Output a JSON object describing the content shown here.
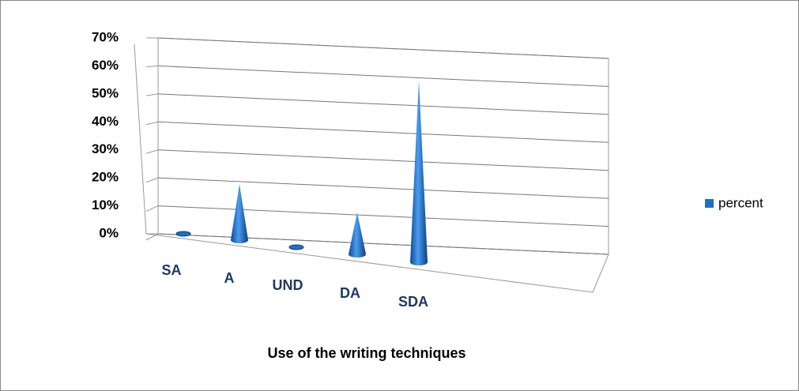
{
  "chart_data": {
    "type": "cone3d",
    "title": "Use of the writing techniques",
    "categories": [
      "SA",
      "A",
      "UND",
      "DA",
      "SDA"
    ],
    "series": [
      {
        "name": "percent",
        "color": "#1f6fc5",
        "values": [
          0,
          20,
          0,
          15,
          65
        ]
      }
    ],
    "ylim": [
      0,
      70
    ],
    "yticks": [
      {
        "value": 0,
        "label": "0%"
      },
      {
        "value": 10,
        "label": "10%"
      },
      {
        "value": 20,
        "label": "20%"
      },
      {
        "value": 30,
        "label": "30%"
      },
      {
        "value": 40,
        "label": "40%"
      },
      {
        "value": 50,
        "label": "50%"
      },
      {
        "value": 60,
        "label": "60%"
      },
      {
        "value": 70,
        "label": "70%"
      }
    ],
    "grid": true,
    "legend": "right"
  }
}
